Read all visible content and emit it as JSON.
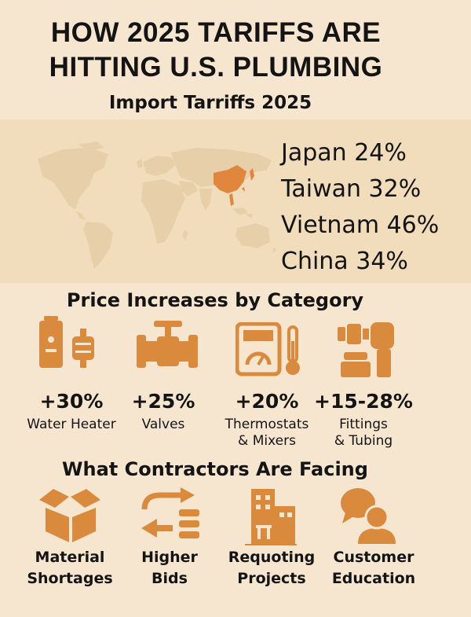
{
  "header": {
    "title_line1": "HOW 2025 TARIFFS ARE",
    "title_line2": "HITTING U.S. PLUMBING",
    "subtitle": "Import Tarriffs 2025"
  },
  "tariffs": [
    {
      "label": "Japan 24%"
    },
    {
      "label": "Taiwan 32%"
    },
    {
      "label": "Vietnam 46%"
    },
    {
      "label": "China 34%"
    }
  ],
  "categories": {
    "heading": "Price Increases by Category",
    "items": [
      {
        "pct": "+30%",
        "line1": "Water Heater",
        "line2": "",
        "icon": "water-heater-icon"
      },
      {
        "pct": "+25%",
        "line1": "Valves",
        "line2": "",
        "icon": "valve-icon"
      },
      {
        "pct": "+20%",
        "line1": "Thermostats",
        "line2": "& Mixers",
        "icon": "thermostat-icon"
      },
      {
        "pct": "+15-28%",
        "line1": "Fittings",
        "line2": "& Tubing",
        "icon": "pipe-fitting-icon"
      }
    ]
  },
  "contractors": {
    "heading": "What Contractors Are Facing",
    "items": [
      {
        "line1": "Material",
        "line2": "Shortages",
        "icon": "box-icon"
      },
      {
        "line1": "Higher",
        "line2": "Bids",
        "icon": "exchange-arrows-icon"
      },
      {
        "line1": "Requoting",
        "line2": "Projects",
        "icon": "building-icon"
      },
      {
        "line1": "Customer",
        "line2": "Education",
        "icon": "chat-user-icon"
      }
    ]
  },
  "colors": {
    "background": "#f7e6cf",
    "map_panel": "#f1dcbc",
    "land": "#e7cfa9",
    "highlight": "#e0873d",
    "icon": "#d98a3d"
  }
}
